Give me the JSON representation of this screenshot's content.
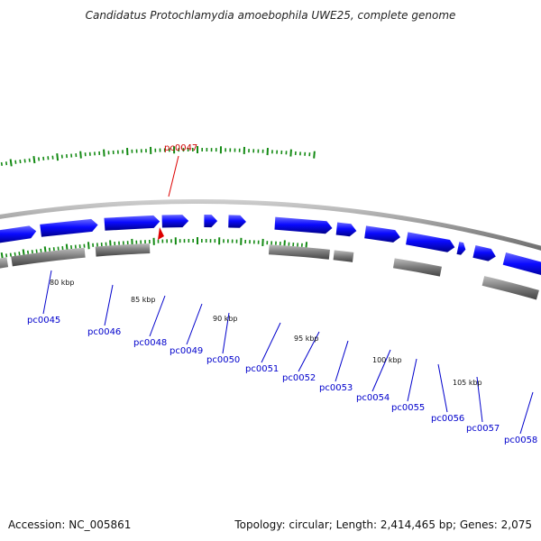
{
  "title": "Candidatus Protochlamydia amoebophila UWE25, complete genome",
  "footer": {
    "accession": "Accession: NC_005861",
    "summary": "Topology: circular; Length: 2,414,465 bp; Genes: 2,075"
  },
  "colors": {
    "forward_gene": "#0a0aff",
    "reverse_gene": "#7a7a7a",
    "backbone": "#8c8c8c",
    "highlight": "#dd0000",
    "label": "#0000cc",
    "tick": "#138a13"
  },
  "highlight": {
    "name": "pc0047"
  },
  "kbp_labels": [
    "80 kbp",
    "85 kbp",
    "90 kbp",
    "95 kbp",
    "100 kbp",
    "105 kbp"
  ],
  "genes": [
    "pc0045",
    "pc0046",
    "pc0048",
    "pc0049",
    "pc0050",
    "pc0051",
    "pc0052",
    "pc0053",
    "pc0054",
    "pc0055",
    "pc0056",
    "pc0057",
    "pc0058"
  ]
}
